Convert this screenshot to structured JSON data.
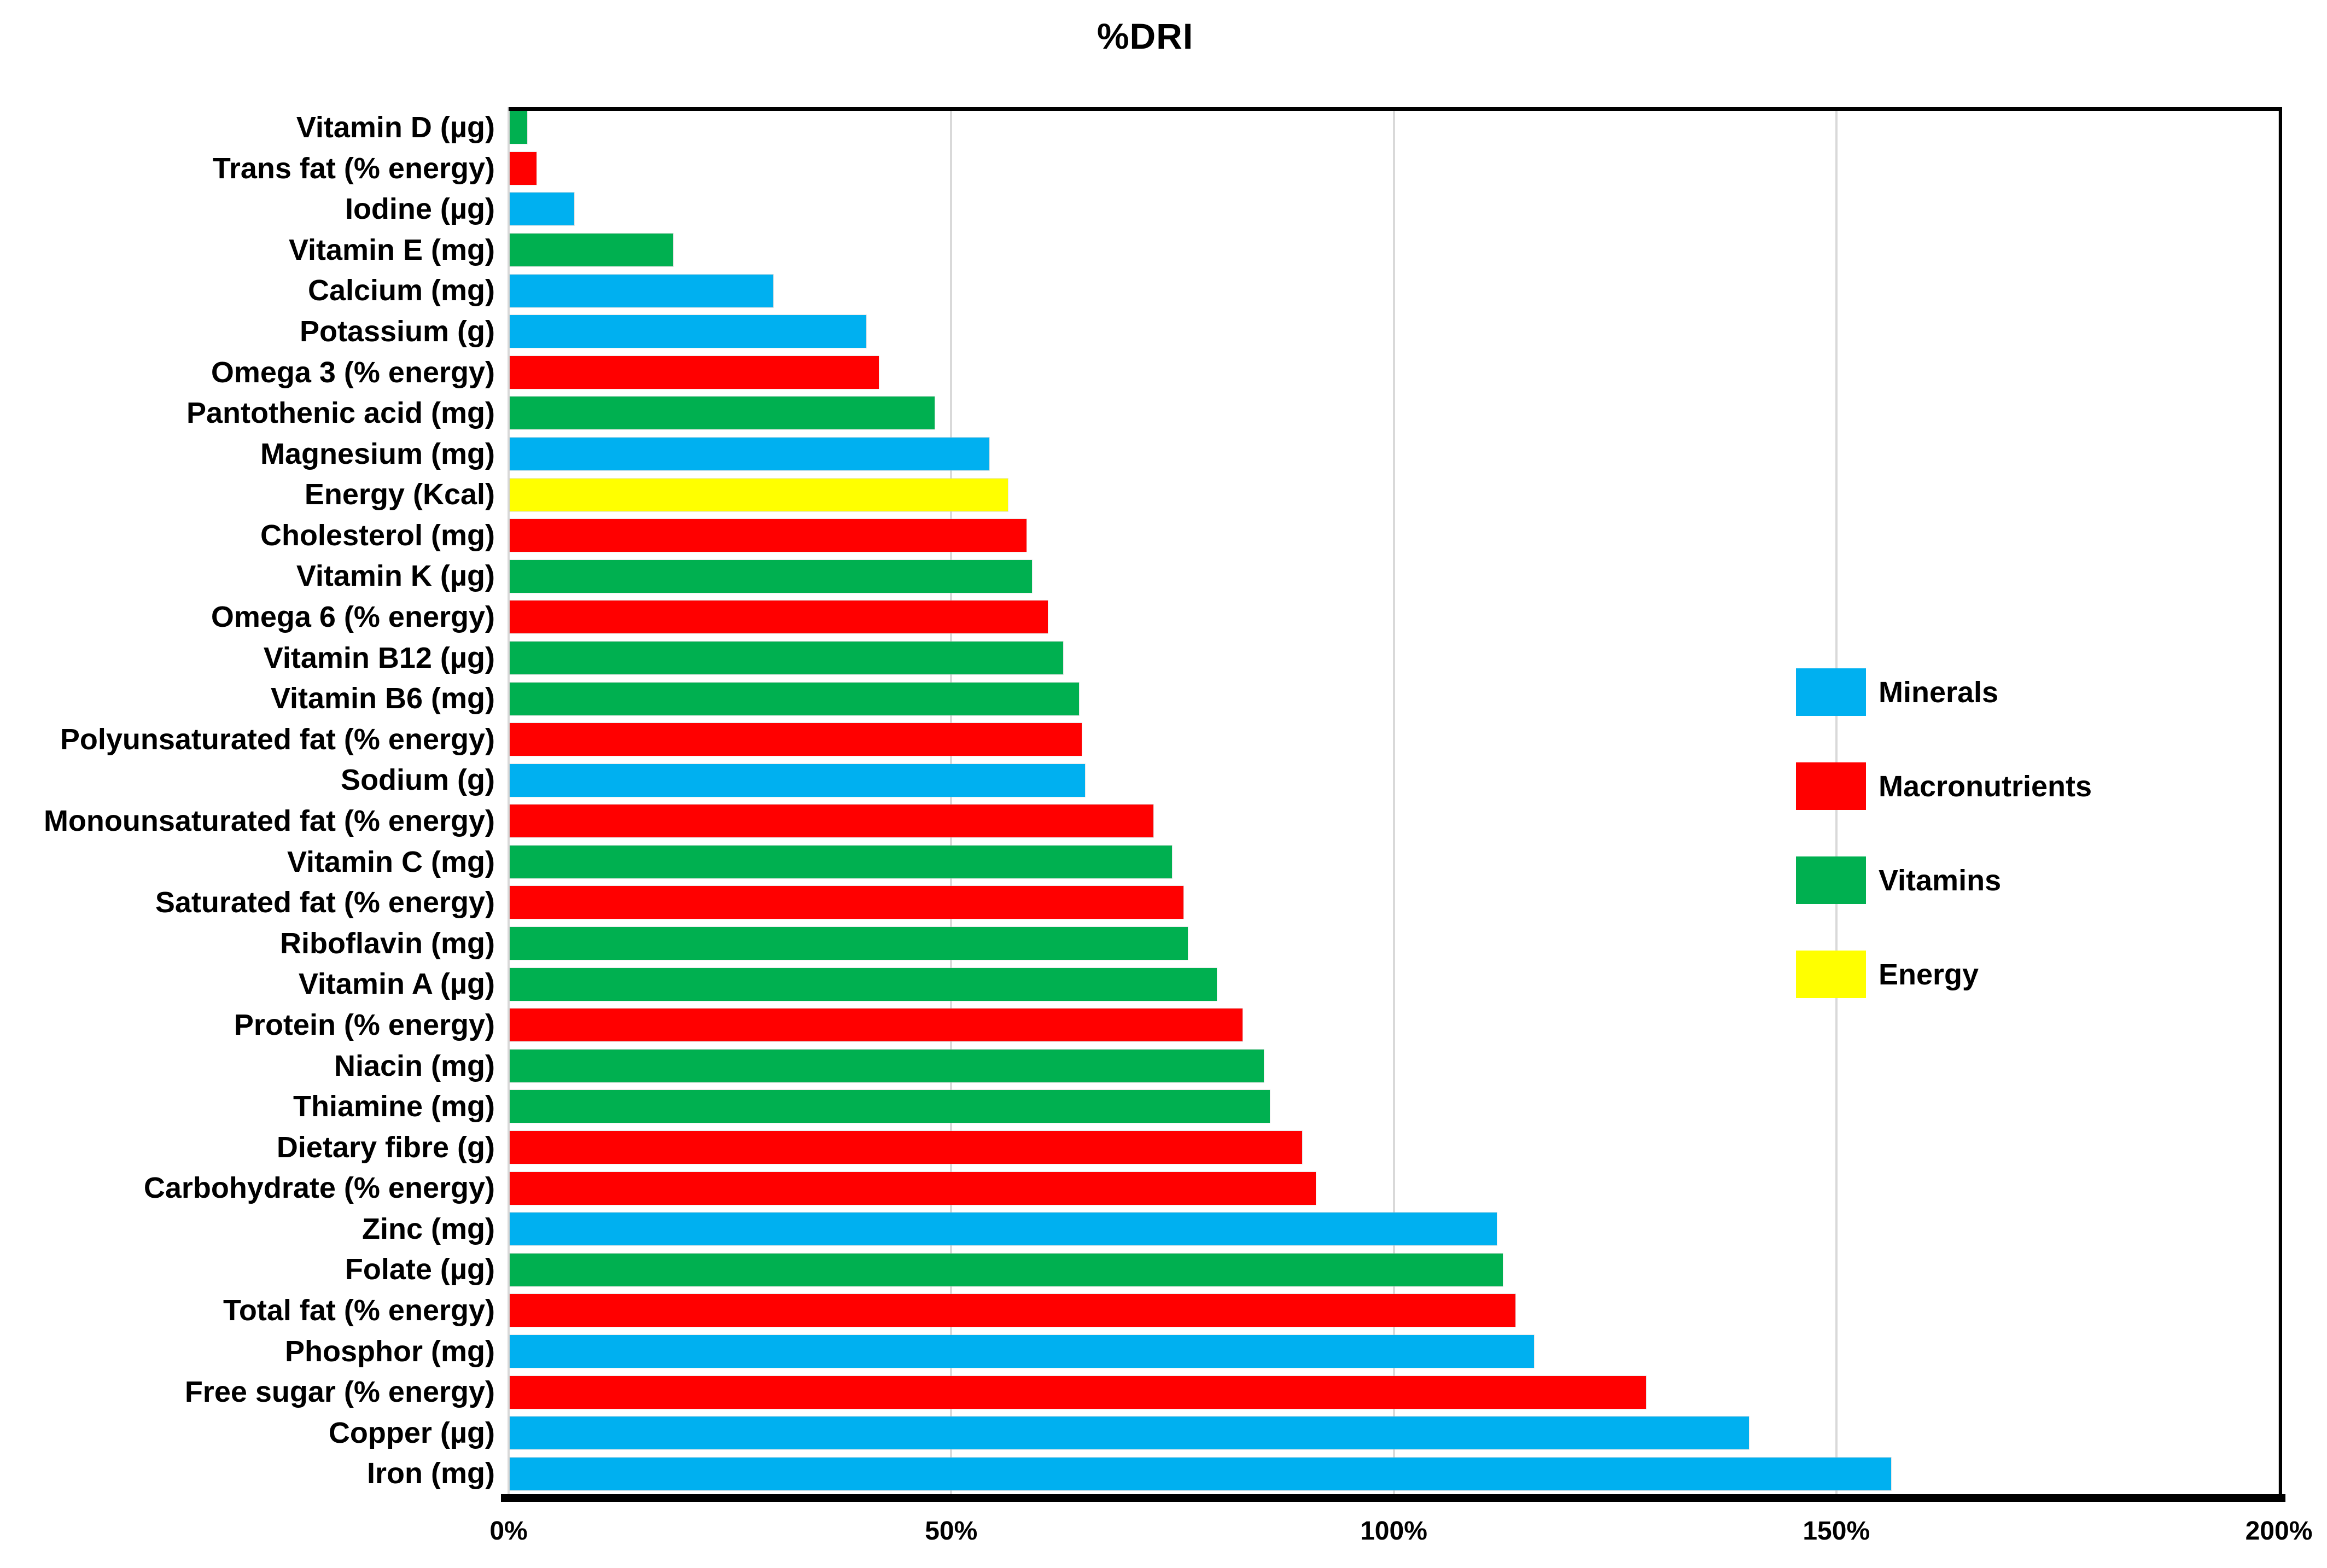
{
  "title": "%DRI",
  "legend": {
    "items": [
      {
        "label": "Minerals",
        "color": "#00B0F0"
      },
      {
        "label": "Macronutrients",
        "color": "#FF0000"
      },
      {
        "label": "Vitamins",
        "color": "#00B050"
      },
      {
        "label": "Energy",
        "color": "#FFFF00"
      }
    ]
  },
  "x_axis": {
    "ticks": [
      "0%",
      "50%",
      "100%",
      "150%",
      "200%"
    ],
    "min": 0,
    "max": 200
  },
  "chart_data": {
    "type": "bar",
    "orientation": "horizontal",
    "title": "%DRI",
    "xlabel": "",
    "ylabel": "",
    "xlim": [
      0,
      200
    ],
    "x_tick_labels": [
      "0%",
      "50%",
      "100%",
      "150%",
      "200%"
    ],
    "grid": true,
    "legend_position": "inside-right",
    "group_colors": {
      "Minerals": "#00B0F0",
      "Macronutrients": "#FF0000",
      "Vitamins": "#00B050",
      "Energy": "#FFFF00"
    },
    "series": [
      {
        "label": "Vitamin D (µg)",
        "group": "Vitamins",
        "value": 2
      },
      {
        "label": "Trans fat (% energy)",
        "group": "Macronutrients",
        "value": 3
      },
      {
        "label": "Iodine (µg)",
        "group": "Minerals",
        "value": 7.3
      },
      {
        "label": "Vitamin E (mg)",
        "group": "Vitamins",
        "value": 18.5
      },
      {
        "label": "Calcium (mg)",
        "group": "Minerals",
        "value": 29.8
      },
      {
        "label": "Potassium (g)",
        "group": "Minerals",
        "value": 40.3
      },
      {
        "label": "Omega 3 (% energy)",
        "group": "Macronutrients",
        "value": 41.7
      },
      {
        "label": "Pantothenic acid (mg)",
        "group": "Vitamins",
        "value": 48
      },
      {
        "label": "Magnesium (mg)",
        "group": "Minerals",
        "value": 54.2
      },
      {
        "label": "Energy (Kcal)",
        "group": "Energy",
        "value": 56.3
      },
      {
        "label": "Cholesterol (mg)",
        "group": "Macronutrients",
        "value": 58.4
      },
      {
        "label": "Vitamin K (µg)",
        "group": "Vitamins",
        "value": 59
      },
      {
        "label": "Omega 6 (% energy)",
        "group": "Macronutrients",
        "value": 60.8
      },
      {
        "label": "Vitamin B12 (µg)",
        "group": "Vitamins",
        "value": 62.5
      },
      {
        "label": "Vitamin B6 (mg)",
        "group": "Vitamins",
        "value": 64.3
      },
      {
        "label": "Polyunsaturated fat (% energy)",
        "group": "Macronutrients",
        "value": 64.6
      },
      {
        "label": "Sodium (g)",
        "group": "Minerals",
        "value": 65
      },
      {
        "label": "Monounsaturated fat (% energy)",
        "group": "Macronutrients",
        "value": 72.7
      },
      {
        "label": "Vitamin C (mg)",
        "group": "Vitamins",
        "value": 74.8
      },
      {
        "label": "Saturated fat (% energy)",
        "group": "Macronutrients",
        "value": 76.1
      },
      {
        "label": "Riboflavin (mg)",
        "group": "Vitamins",
        "value": 76.6
      },
      {
        "label": "Vitamin A (µg)",
        "group": "Vitamins",
        "value": 79.9
      },
      {
        "label": "Protein (% energy)",
        "group": "Macronutrients",
        "value": 82.8
      },
      {
        "label": "Niacin (mg)",
        "group": "Vitamins",
        "value": 85.2
      },
      {
        "label": "Thiamine (mg)",
        "group": "Vitamins",
        "value": 85.9
      },
      {
        "label": "Dietary fibre (g)",
        "group": "Macronutrients",
        "value": 89.5
      },
      {
        "label": "Carbohydrate (% energy)",
        "group": "Macronutrients",
        "value": 91.1
      },
      {
        "label": "Zinc (mg)",
        "group": "Minerals",
        "value": 111.5
      },
      {
        "label": "Folate (µg)",
        "group": "Vitamins",
        "value": 112.2
      },
      {
        "label": "Total fat (% energy)",
        "group": "Macronutrients",
        "value": 113.6
      },
      {
        "label": "Phosphor (mg)",
        "group": "Minerals",
        "value": 115.7
      },
      {
        "label": "Free sugar (% energy)",
        "group": "Macronutrients",
        "value": 128.4
      },
      {
        "label": "Copper (µg)",
        "group": "Minerals",
        "value": 140
      },
      {
        "label": "Iron (mg)",
        "group": "Minerals",
        "value": 156.1
      }
    ]
  }
}
